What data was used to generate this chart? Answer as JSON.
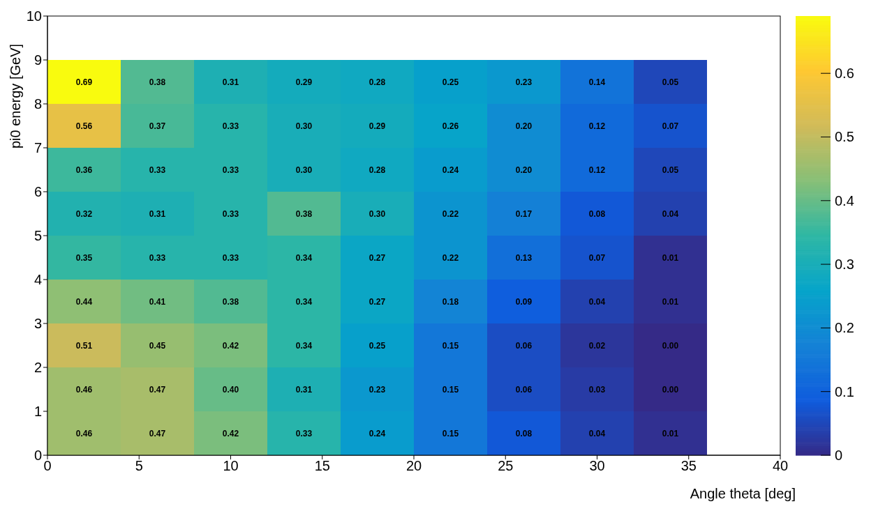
{
  "chart_data": {
    "type": "heatmap",
    "xlabel": "Angle theta [deg]",
    "ylabel": "pi0 energy [GeV]",
    "x": [
      2,
      6,
      10,
      14,
      18,
      22,
      26,
      30,
      34
    ],
    "y": [
      8.5,
      7.5,
      6.5,
      5.5,
      4.5,
      3.5,
      2.5,
      1.5,
      0.5
    ],
    "xlim": [
      0,
      40
    ],
    "xticks": [
      0,
      5,
      10,
      15,
      20,
      25,
      30,
      35,
      40
    ],
    "ylim": [
      0,
      10
    ],
    "yticks": [
      0,
      1,
      2,
      3,
      4,
      5,
      6,
      7,
      8,
      9,
      10
    ],
    "clim": [
      0,
      0.69
    ],
    "cticks": [
      0,
      0.1,
      0.2,
      0.3,
      0.4,
      0.5,
      0.6
    ],
    "colors": [
      "#352a87",
      "#0f5cdd",
      "#1481d6",
      "#06a4ca",
      "#2eb7a4",
      "#87bf77",
      "#d1bb59",
      "#fec832",
      "#f9fb0e"
    ],
    "cell_labels": [
      [
        "0.69",
        "0.38",
        "0.31",
        "0.29",
        "0.28",
        "0.25",
        "0.23",
        "0.14",
        "0.05"
      ],
      [
        "0.56",
        "0.37",
        "0.33",
        "0.30",
        "0.29",
        "0.26",
        "0.20",
        "0.12",
        "0.07"
      ],
      [
        "0.36",
        "0.33",
        "0.33",
        "0.30",
        "0.28",
        "0.24",
        "0.20",
        "0.12",
        "0.05"
      ],
      [
        "0.32",
        "0.31",
        "0.33",
        "0.38",
        "0.30",
        "0.22",
        "0.17",
        "0.08",
        "0.04"
      ],
      [
        "0.35",
        "0.33",
        "0.33",
        "0.34",
        "0.27",
        "0.22",
        "0.13",
        "0.07",
        "0.01"
      ],
      [
        "0.44",
        "0.41",
        "0.38",
        "0.34",
        "0.27",
        "0.18",
        "0.09",
        "0.04",
        "0.01"
      ],
      [
        "0.51",
        "0.45",
        "0.42",
        "0.34",
        "0.25",
        "0.15",
        "0.06",
        "0.02",
        "0.00"
      ],
      [
        "0.46",
        "0.47",
        "0.40",
        "0.31",
        "0.23",
        "0.15",
        "0.06",
        "0.03",
        "0.00"
      ],
      [
        "0.46",
        "0.47",
        "0.42",
        "0.33",
        "0.24",
        "0.15",
        "0.08",
        "0.04",
        "0.01"
      ]
    ],
    "cells": [
      [
        0.69,
        0.38,
        0.31,
        0.29,
        0.28,
        0.25,
        0.23,
        0.14,
        0.05
      ],
      [
        0.56,
        0.37,
        0.33,
        0.3,
        0.29,
        0.26,
        0.2,
        0.12,
        0.07
      ],
      [
        0.36,
        0.33,
        0.33,
        0.3,
        0.28,
        0.24,
        0.2,
        0.12,
        0.05
      ],
      [
        0.32,
        0.31,
        0.33,
        0.38,
        0.3,
        0.22,
        0.17,
        0.08,
        0.04
      ],
      [
        0.35,
        0.33,
        0.33,
        0.34,
        0.27,
        0.22,
        0.13,
        0.07,
        0.01
      ],
      [
        0.44,
        0.41,
        0.38,
        0.34,
        0.27,
        0.18,
        0.09,
        0.04,
        0.01
      ],
      [
        0.51,
        0.45,
        0.42,
        0.34,
        0.25,
        0.15,
        0.06,
        0.02,
        0.0
      ],
      [
        0.46,
        0.47,
        0.4,
        0.31,
        0.23,
        0.15,
        0.06,
        0.03,
        0.0
      ],
      [
        0.46,
        0.47,
        0.42,
        0.33,
        0.24,
        0.15,
        0.08,
        0.04,
        0.01
      ]
    ]
  }
}
